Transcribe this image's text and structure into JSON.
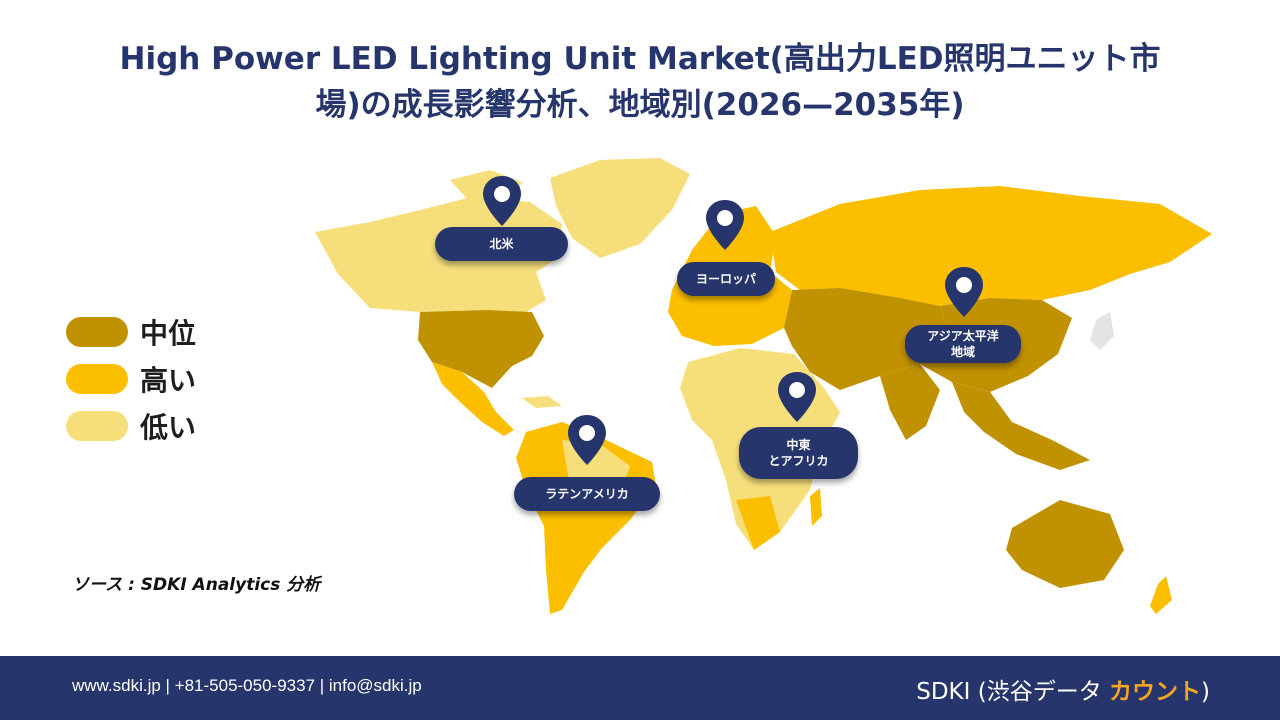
{
  "title": {
    "line1": "High Power LED Lighting Unit Market(高出力LED照明ユニット市",
    "line2": "場)の成長影響分析、地域別(2026—2035年)"
  },
  "legend": [
    {
      "label": "中位",
      "color": "#c09100"
    },
    {
      "label": "高い",
      "color": "#fbbf00"
    },
    {
      "label": "低い",
      "color": "#f6df7b"
    }
  ],
  "regions": {
    "north_america": "北米",
    "europe": "ヨーロッパ",
    "asia_pacific": [
      "アジア太平洋",
      "地域"
    ],
    "middle_east_africa": [
      "中東",
      "とアフリカ"
    ],
    "latin_america": "ラテンアメリカ"
  },
  "source": "ソース : SDKI Analytics 分析",
  "footer": {
    "contact": "www.sdki.jp | +81-505-050-9337 | info@sdki.jp",
    "brand_prefix": "SDKI (渋谷データ ",
    "brand_accent": "カウント",
    "brand_suffix": ")"
  },
  "colors": {
    "medium": "#c09100",
    "high": "#fbbf00",
    "low": "#f6df7b",
    "navy": "#26356b"
  }
}
